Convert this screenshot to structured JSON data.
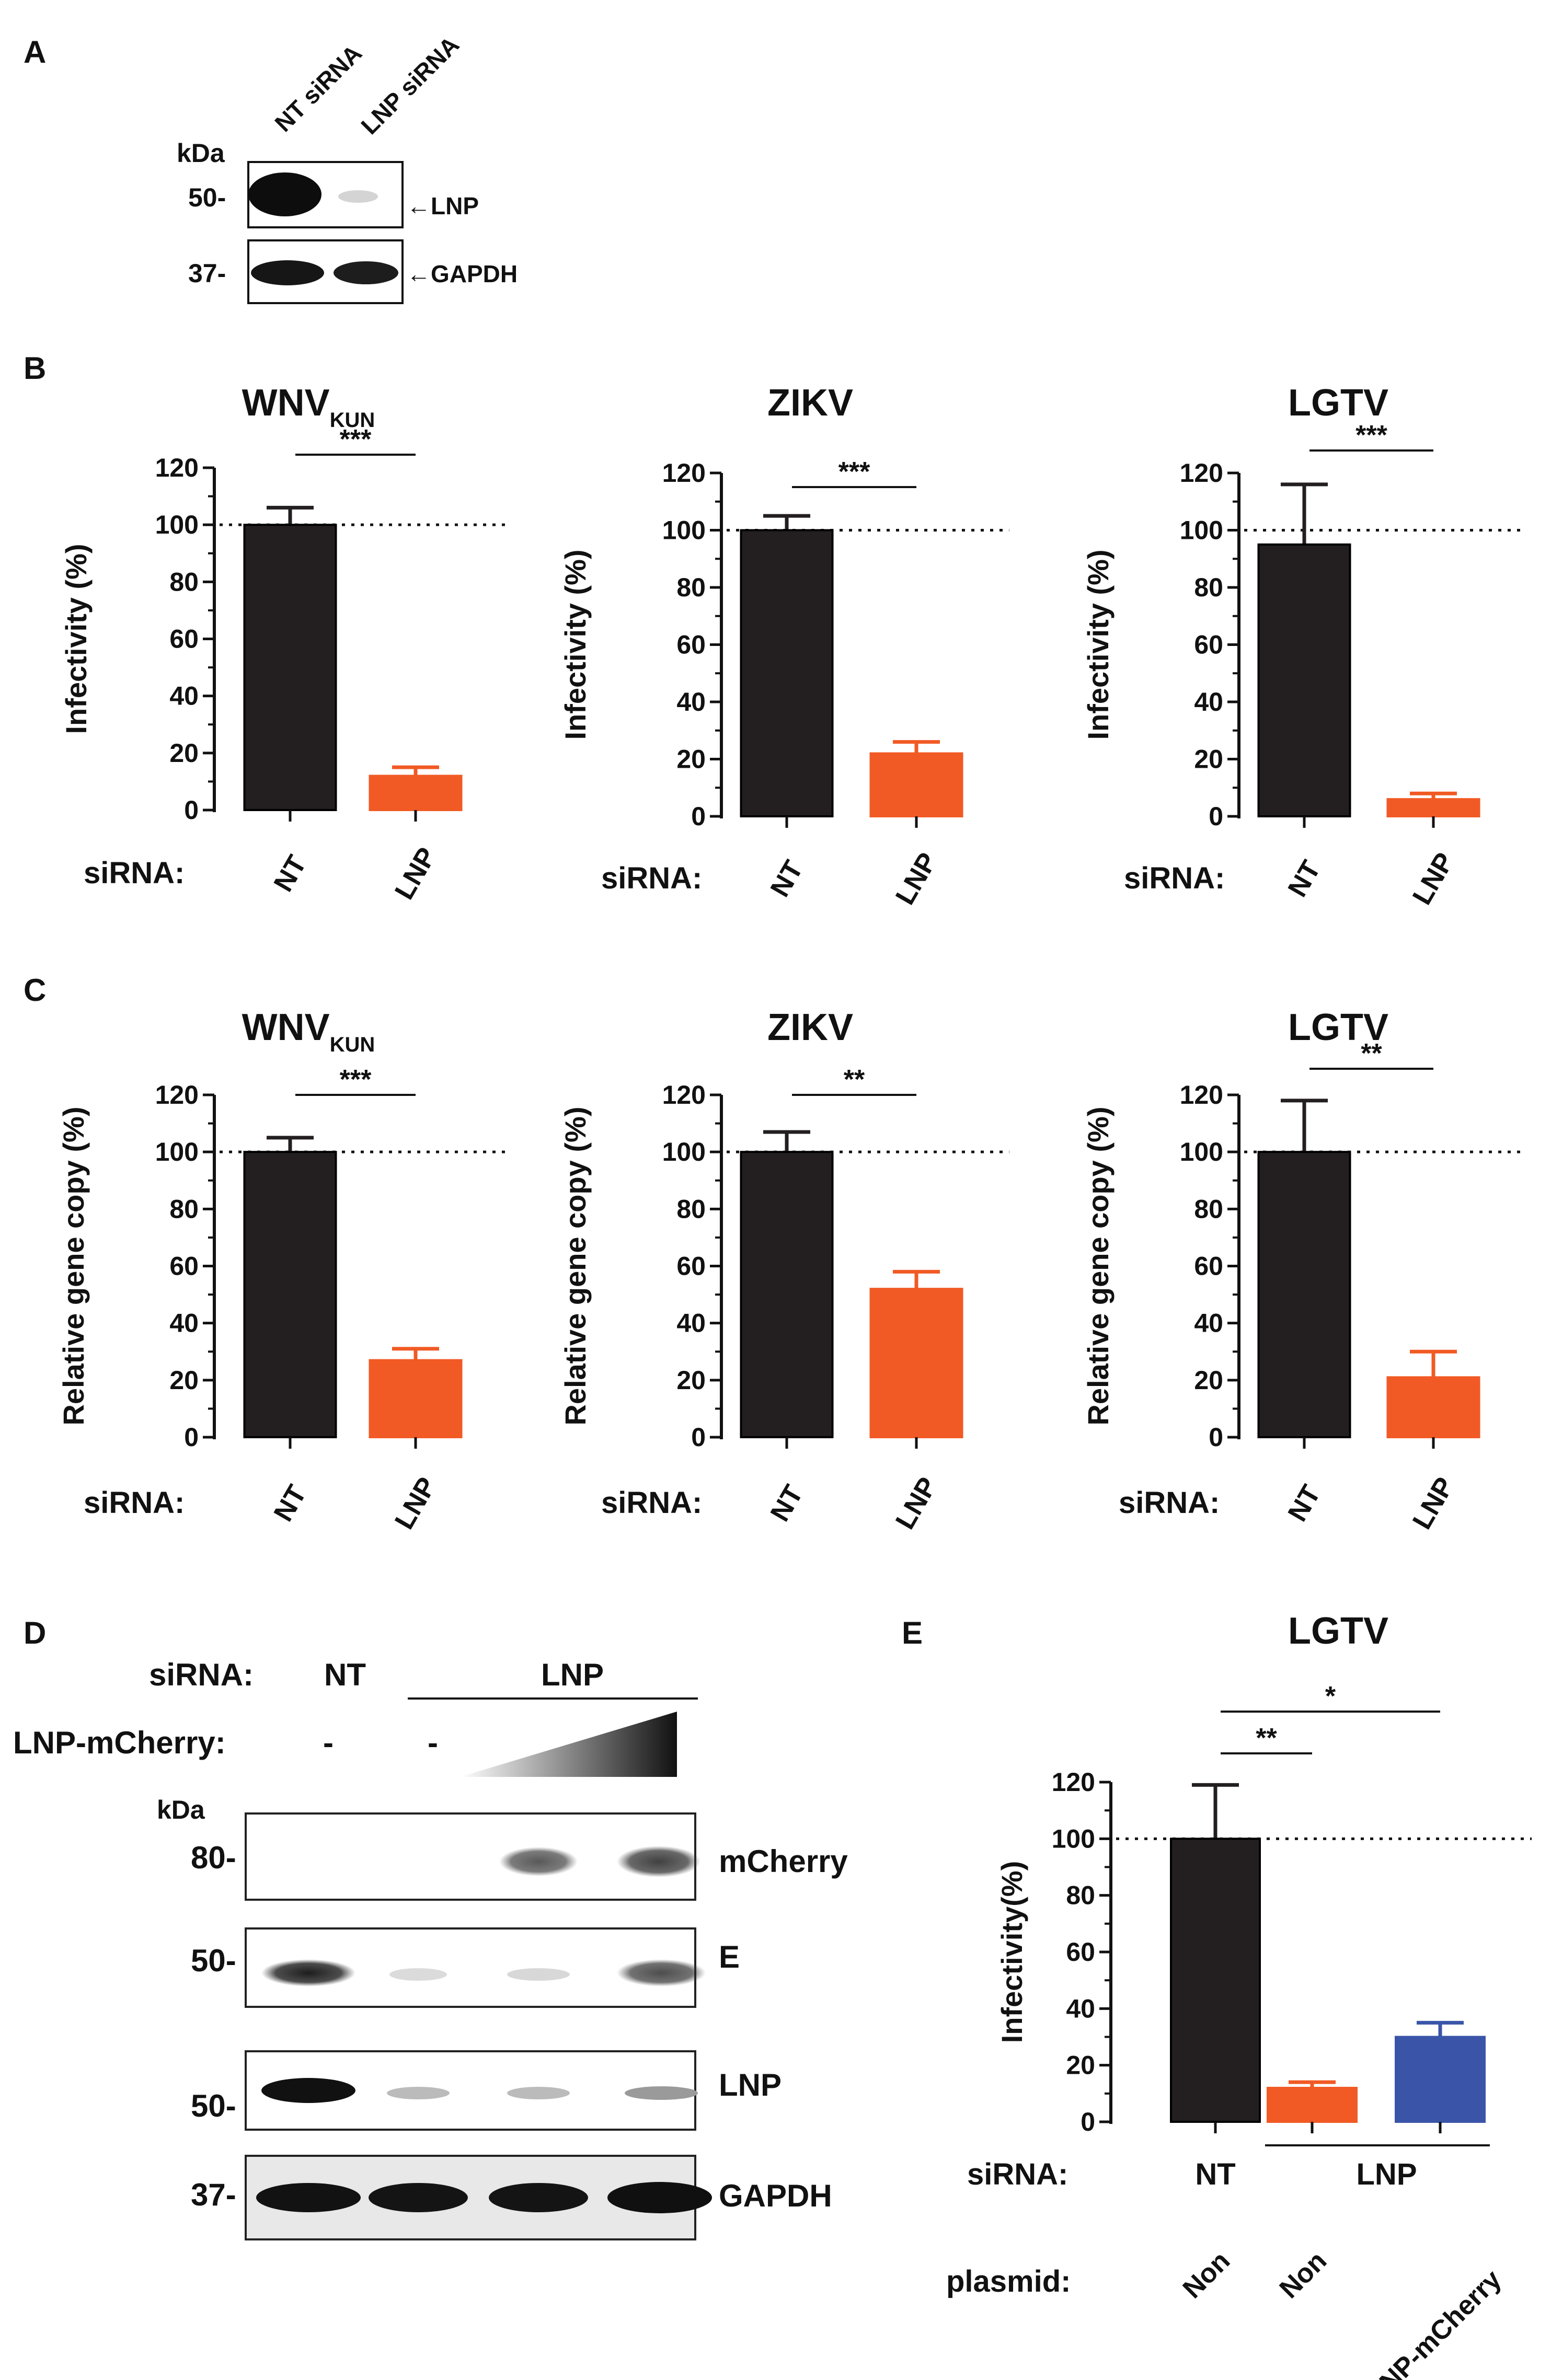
{
  "panels": {
    "A": "A",
    "B": "B",
    "C": "C",
    "D": "D",
    "E": "E"
  },
  "blotA": {
    "lanes": [
      "NT siRNA",
      "LNP siRNA"
    ],
    "unit": "kDa",
    "markers": [
      "50-",
      "37-"
    ],
    "labels": [
      "←LNP",
      "←GAPDH"
    ]
  },
  "blotD": {
    "sirna_label": "siRNA:",
    "sirna_nt": "NT",
    "sirna_lnp": "LNP",
    "mcherry_label": "LNP-mCherry:",
    "mcherry_minus1": "-",
    "mcherry_minus2": "-",
    "unit": "kDa",
    "markers": [
      "80-",
      "50-",
      "50-",
      "37-"
    ],
    "labels": [
      "mCherry",
      "E",
      "LNP",
      "GAPDH"
    ]
  },
  "colors": {
    "nt": "#231f20",
    "lnp": "#f15a24",
    "mcherry": "#3a55a8"
  },
  "chart_data": [
    {
      "id": "B1",
      "type": "bar",
      "title": "WNV",
      "title_sub": "KUN",
      "ylabel": "Infectivity (%)",
      "ylim": [
        0,
        120
      ],
      "yticks": [
        0,
        20,
        40,
        60,
        80,
        100,
        120
      ],
      "row_label": "siRNA:",
      "categories": [
        "NT",
        "LNP"
      ],
      "values": [
        100,
        12
      ],
      "errors": [
        6,
        3
      ],
      "reference_line": 100,
      "significance": [
        {
          "from": 0,
          "to": 1,
          "label": "***"
        }
      ]
    },
    {
      "id": "B2",
      "type": "bar",
      "title": "ZIKV",
      "title_sub": "",
      "ylabel": "Infectivity (%)",
      "ylim": [
        0,
        120
      ],
      "yticks": [
        0,
        20,
        40,
        60,
        80,
        100,
        120
      ],
      "row_label": "siRNA:",
      "categories": [
        "NT",
        "LNP"
      ],
      "values": [
        100,
        22
      ],
      "errors": [
        5,
        4
      ],
      "reference_line": 100,
      "significance": [
        {
          "from": 0,
          "to": 1,
          "label": "***"
        }
      ]
    },
    {
      "id": "B3",
      "type": "bar",
      "title": "LGTV",
      "title_sub": "",
      "ylabel": "Infectivity (%)",
      "ylim": [
        0,
        120
      ],
      "yticks": [
        0,
        20,
        40,
        60,
        80,
        100,
        120
      ],
      "row_label": "siRNA:",
      "categories": [
        "NT",
        "LNP"
      ],
      "values": [
        95,
        6
      ],
      "errors": [
        21,
        2
      ],
      "reference_line": 100,
      "significance": [
        {
          "from": 0,
          "to": 1,
          "label": "***"
        }
      ]
    },
    {
      "id": "C1",
      "type": "bar",
      "title": "WNV",
      "title_sub": "KUN",
      "ylabel": "Relative gene copy (%)",
      "ylim": [
        0,
        120
      ],
      "yticks": [
        0,
        20,
        40,
        60,
        80,
        100,
        120
      ],
      "row_label": "siRNA:",
      "categories": [
        "NT",
        "LNP"
      ],
      "values": [
        100,
        27
      ],
      "errors": [
        5,
        4
      ],
      "reference_line": 100,
      "significance": [
        {
          "from": 0,
          "to": 1,
          "label": "***"
        }
      ]
    },
    {
      "id": "C2",
      "type": "bar",
      "title": "ZIKV",
      "title_sub": "",
      "ylabel": "Relative gene copy (%)",
      "ylim": [
        0,
        120
      ],
      "yticks": [
        0,
        20,
        40,
        60,
        80,
        100,
        120
      ],
      "row_label": "siRNA:",
      "categories": [
        "NT",
        "LNP"
      ],
      "values": [
        100,
        52
      ],
      "errors": [
        7,
        6
      ],
      "reference_line": 100,
      "significance": [
        {
          "from": 0,
          "to": 1,
          "label": "**"
        }
      ]
    },
    {
      "id": "C3",
      "type": "bar",
      "title": "LGTV",
      "title_sub": "",
      "ylabel": "Relative gene copy (%)",
      "ylim": [
        0,
        120
      ],
      "yticks": [
        0,
        20,
        40,
        60,
        80,
        100,
        120
      ],
      "row_label": "siRNA:",
      "categories": [
        "NT",
        "LNP"
      ],
      "values": [
        100,
        21
      ],
      "errors": [
        18,
        9
      ],
      "reference_line": 100,
      "significance": [
        {
          "from": 0,
          "to": 1,
          "label": "**"
        }
      ]
    },
    {
      "id": "E",
      "type": "bar",
      "title": "LGTV",
      "title_sub": "",
      "ylabel": "Infectivity(%)",
      "ylim": [
        0,
        120
      ],
      "yticks": [
        0,
        20,
        40,
        60,
        80,
        100,
        120
      ],
      "row_label": "siRNA:",
      "row_label2": "plasmid:",
      "categories": [
        "Non",
        "Non",
        "LNP-mCherry"
      ],
      "sirna_groups": [
        "NT",
        "LNP"
      ],
      "values": [
        100,
        12,
        30
      ],
      "errors": [
        19,
        2,
        5
      ],
      "reference_line": 100,
      "significance": [
        {
          "from": 0,
          "to": 1,
          "label": "**"
        },
        {
          "from": 0,
          "to": 2,
          "label": "*"
        }
      ]
    }
  ]
}
